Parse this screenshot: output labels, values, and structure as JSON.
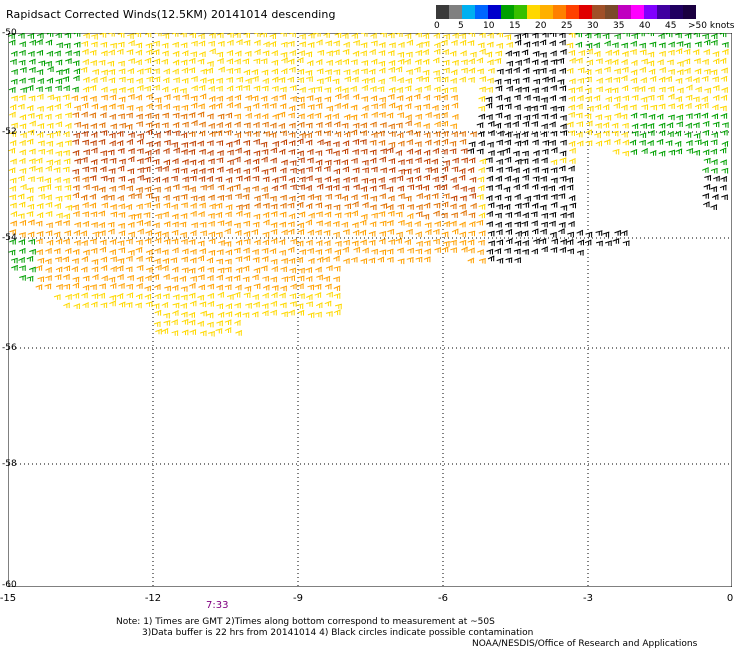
{
  "title": "Rapidsact Corrected Winds(12.5KM) 20141014 descending",
  "legend": {
    "unit": ">50 knots",
    "labels": [
      "0",
      "5",
      "10",
      "15",
      "20",
      "25",
      "30",
      "35",
      "40",
      "45"
    ],
    "colors": [
      "#3a3a3a",
      "#808080",
      "#00b0f0",
      "#0066ff",
      "#0000cc",
      "#00a000",
      "#38c000",
      "#ffd800",
      "#ffb000",
      "#ff8000",
      "#ff4000",
      "#e00000",
      "#a05028",
      "#7a4a2a",
      "#c000c0",
      "#ff00ff",
      "#8000ff",
      "#4000a0",
      "#200060",
      "#1a0040"
    ]
  },
  "map": {
    "lon_ticks": [
      "-15",
      "-12",
      "-9",
      "-6",
      "-3",
      "0"
    ],
    "lat_ticks": [
      "-50",
      "-52",
      "-54",
      "-56",
      "-58",
      "-60"
    ],
    "time_label": "7:33",
    "barb_colors": {
      "green": "#00a000",
      "yellow": "#ffd800",
      "orange": "#ffa000",
      "dark_orange": "#e07000",
      "red_brown": "#c04000",
      "black": "#000000"
    }
  },
  "notes": {
    "line1": "Note: 1) Times are GMT 2)Times along bottom correspond to measurement at ~50S",
    "line2": "3)Data buffer is 22 hrs from 20141014 4) Black circles indicate possible contamination",
    "credit": "NOAA/NESDIS/Office of Research and Applications"
  }
}
